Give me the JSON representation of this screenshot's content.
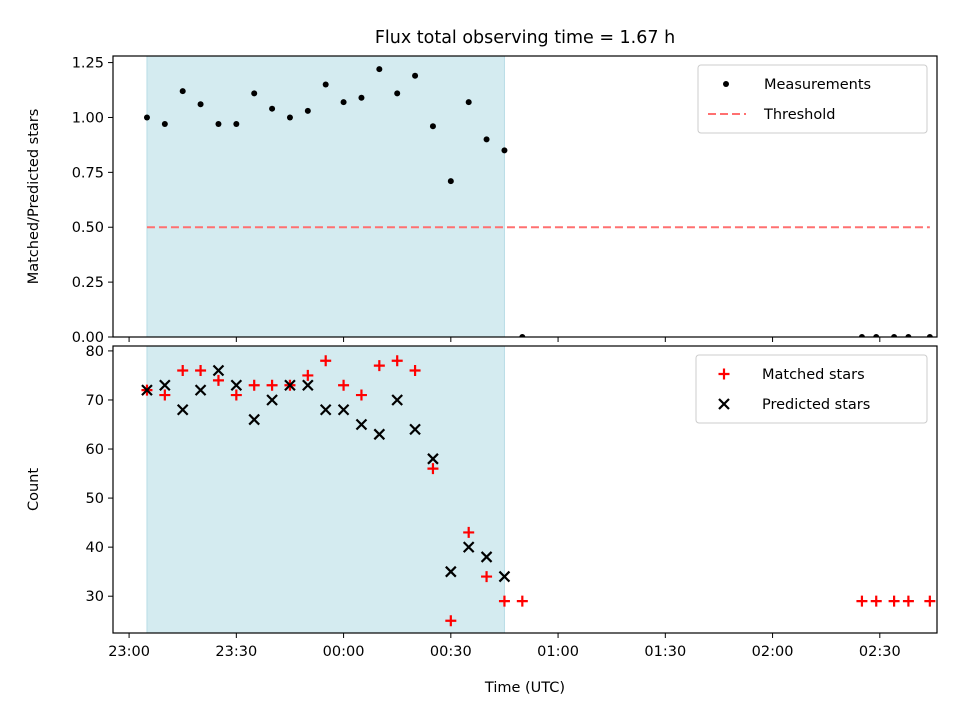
{
  "chart_data": {
    "type": "scatter",
    "title": "Flux total observing time = 1.67 h",
    "xlabel": "Time (UTC)",
    "x_ticks": [
      "23:00",
      "23:30",
      "00:00",
      "00:30",
      "01:00",
      "01:30",
      "02:00",
      "02:30"
    ],
    "x_tick_minutes": [
      0,
      30,
      60,
      90,
      120,
      150,
      180,
      210
    ],
    "xlim_minutes": [
      -4.5,
      226
    ],
    "observing_window_minutes": [
      5,
      105
    ],
    "observing_window_color": "#d4ebf0",
    "panels": [
      {
        "ylabel": "Matched/Predicted stars",
        "ylim": [
          0,
          1.28
        ],
        "y_ticks": [
          "0.00",
          "0.25",
          "0.50",
          "0.75",
          "1.00",
          "1.25"
        ],
        "y_tick_values": [
          0,
          0.25,
          0.5,
          0.75,
          1.0,
          1.25
        ],
        "legend_position": "top-right",
        "series": [
          {
            "name": "Measurements",
            "marker": "dot",
            "color": "#000000",
            "points": [
              [
                5,
                1.0
              ],
              [
                10,
                0.97
              ],
              [
                15,
                1.12
              ],
              [
                20,
                1.06
              ],
              [
                25,
                0.97
              ],
              [
                30,
                0.97
              ],
              [
                35,
                1.11
              ],
              [
                40,
                1.04
              ],
              [
                45,
                1.0
              ],
              [
                50,
                1.03
              ],
              [
                55,
                1.15
              ],
              [
                60,
                1.07
              ],
              [
                65,
                1.09
              ],
              [
                70,
                1.22
              ],
              [
                75,
                1.11
              ],
              [
                80,
                1.19
              ],
              [
                85,
                0.96
              ],
              [
                90,
                0.71
              ],
              [
                95,
                1.07
              ],
              [
                100,
                0.9
              ],
              [
                105,
                0.85
              ],
              [
                110,
                0.0
              ],
              [
                205,
                0.0
              ],
              [
                209,
                0.0
              ],
              [
                214,
                0.0
              ],
              [
                218,
                0.0
              ],
              [
                224,
                0.0
              ]
            ]
          },
          {
            "name": "Threshold",
            "marker": "dashed-line",
            "color": "#ff7070",
            "y": 0.5,
            "x_range": [
              5,
              224
            ]
          }
        ]
      },
      {
        "ylabel": "Count",
        "ylim": [
          22.5,
          81
        ],
        "y_ticks": [
          "30",
          "40",
          "50",
          "60",
          "70",
          "80"
        ],
        "y_tick_values": [
          30,
          40,
          50,
          60,
          70,
          80
        ],
        "legend_position": "top-right",
        "series": [
          {
            "name": "Matched stars",
            "marker": "plus",
            "color": "#ff0000",
            "points": [
              [
                5,
                72
              ],
              [
                10,
                71
              ],
              [
                15,
                76
              ],
              [
                20,
                76
              ],
              [
                25,
                74
              ],
              [
                30,
                71
              ],
              [
                35,
                73
              ],
              [
                40,
                73
              ],
              [
                45,
                73
              ],
              [
                50,
                75
              ],
              [
                55,
                78
              ],
              [
                60,
                73
              ],
              [
                65,
                71
              ],
              [
                70,
                77
              ],
              [
                75,
                78
              ],
              [
                80,
                76
              ],
              [
                85,
                56
              ],
              [
                90,
                25
              ],
              [
                95,
                43
              ],
              [
                100,
                34
              ],
              [
                105,
                29
              ],
              [
                110,
                29
              ],
              [
                205,
                29
              ],
              [
                209,
                29
              ],
              [
                214,
                29
              ],
              [
                218,
                29
              ],
              [
                224,
                29
              ]
            ]
          },
          {
            "name": "Predicted stars",
            "marker": "x",
            "color": "#000000",
            "points": [
              [
                5,
                72
              ],
              [
                10,
                73
              ],
              [
                15,
                68
              ],
              [
                20,
                72
              ],
              [
                25,
                76
              ],
              [
                30,
                73
              ],
              [
                35,
                66
              ],
              [
                40,
                70
              ],
              [
                45,
                73
              ],
              [
                50,
                73
              ],
              [
                55,
                68
              ],
              [
                60,
                68
              ],
              [
                65,
                65
              ],
              [
                70,
                63
              ],
              [
                75,
                70
              ],
              [
                80,
                64
              ],
              [
                85,
                58
              ],
              [
                90,
                35
              ],
              [
                95,
                40
              ],
              [
                100,
                38
              ],
              [
                105,
                34
              ]
            ]
          }
        ]
      }
    ]
  }
}
